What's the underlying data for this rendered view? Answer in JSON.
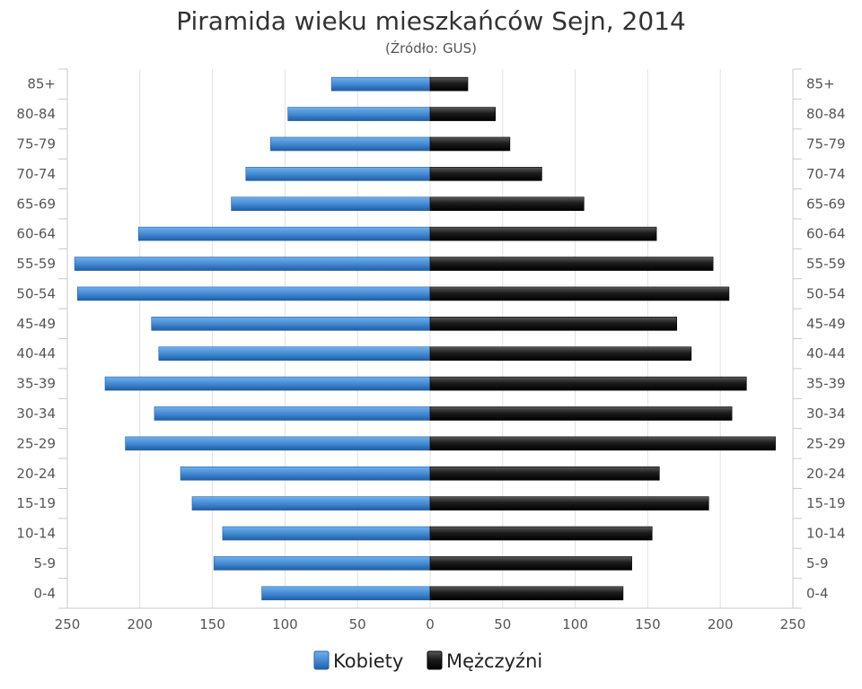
{
  "chart_data": {
    "type": "bar",
    "orientation": "horizontal",
    "title": "Piramida wieku mieszkańców Sejn, 2014",
    "subtitle": "(Źródło: GUS)",
    "categories": [
      "85+",
      "80-84",
      "75-79",
      "70-74",
      "65-69",
      "60-64",
      "55-59",
      "50-54",
      "45-49",
      "40-44",
      "35-39",
      "30-34",
      "25-29",
      "20-24",
      "15-19",
      "10-14",
      "5-9",
      "0-4"
    ],
    "series": [
      {
        "name": "Kobiety",
        "side": "left",
        "color": "#4a8fd6",
        "values": [
          68,
          98,
          110,
          127,
          137,
          201,
          245,
          243,
          192,
          187,
          224,
          190,
          210,
          172,
          164,
          143,
          149,
          116
        ]
      },
      {
        "name": "Mężczyźni",
        "side": "right",
        "color": "#1c1c1c",
        "values": [
          26,
          45,
          55,
          77,
          106,
          156,
          195,
          206,
          170,
          180,
          218,
          208,
          238,
          158,
          192,
          153,
          139,
          133
        ]
      }
    ],
    "x_ticks": [
      "250",
      "200",
      "150",
      "100",
      "50",
      "0",
      "50",
      "100",
      "150",
      "200",
      "250"
    ],
    "xlim": [
      -250,
      250
    ],
    "grid": true,
    "legend_position": "bottom"
  }
}
